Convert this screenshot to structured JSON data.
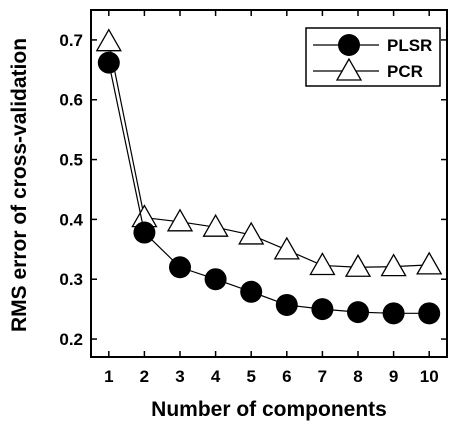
{
  "chart_data": {
    "type": "line",
    "xlabel": "Number of components",
    "ylabel": "RMS error of cross-validation",
    "x": [
      1,
      2,
      3,
      4,
      5,
      6,
      7,
      8,
      9,
      10
    ],
    "xlim": [
      0.5,
      10.5
    ],
    "ylim": [
      0.17,
      0.75
    ],
    "yticks": [
      0.2,
      0.3,
      0.4,
      0.5,
      0.6,
      0.7
    ],
    "ytick_labels": [
      "0.2",
      "0.3",
      "0.4",
      "0.5",
      "0.6",
      "0.7"
    ],
    "xtick_labels": [
      "1",
      "2",
      "3",
      "4",
      "5",
      "6",
      "7",
      "8",
      "9",
      "10"
    ],
    "grid": false,
    "legend_position": "top-right",
    "series": [
      {
        "name": "PLSR",
        "marker": "filled-circle",
        "color": "#000000",
        "values": [
          0.662,
          0.378,
          0.32,
          0.3,
          0.279,
          0.257,
          0.25,
          0.245,
          0.243,
          0.243
        ]
      },
      {
        "name": "PCR",
        "marker": "open-triangle",
        "color": "#000000",
        "values": [
          0.697,
          0.403,
          0.396,
          0.387,
          0.374,
          0.349,
          0.323,
          0.32,
          0.321,
          0.324
        ]
      }
    ]
  }
}
